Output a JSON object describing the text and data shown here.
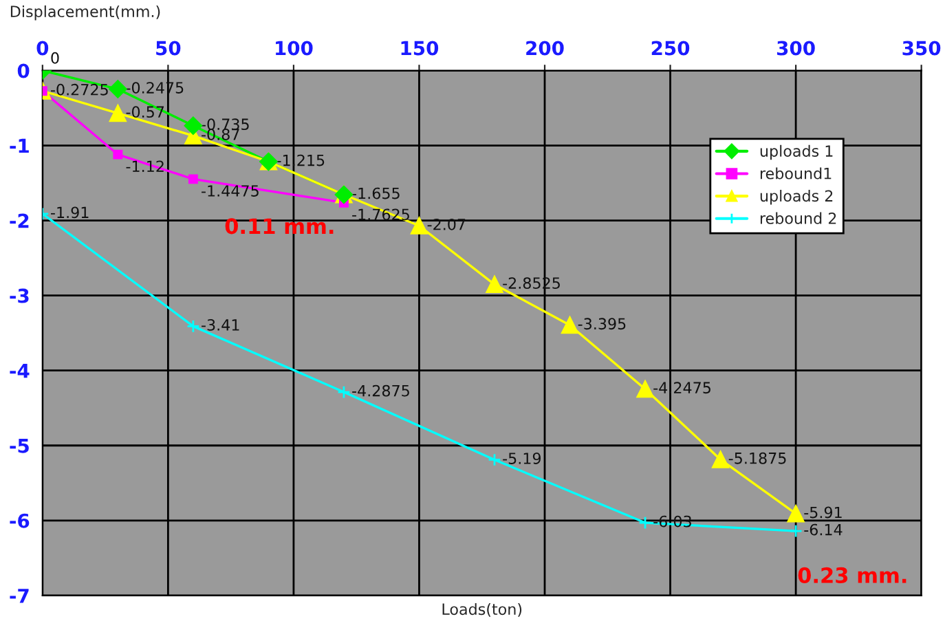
{
  "chart_data": {
    "type": "line",
    "xlabel": "Loads(ton)",
    "ylabel": "Displacement(mm.)",
    "xlim": [
      0,
      350
    ],
    "xticks": [
      0,
      50,
      100,
      150,
      200,
      250,
      300,
      350
    ],
    "ylim": [
      -7,
      0
    ],
    "yticks": [
      -7,
      -6,
      -5,
      -4,
      -3,
      -2,
      -1,
      0
    ],
    "grid": true,
    "legend": "right",
    "series": [
      {
        "name": "uploads 1",
        "color": "#00ee00",
        "marker": "diamond",
        "x": [
          0,
          30,
          60,
          90,
          120
        ],
        "values": [
          0,
          -0.2475,
          -0.735,
          -1.215,
          -1.655
        ],
        "value_labels": [
          "0",
          "-0.2475",
          "-0.735",
          null,
          "-1.655"
        ]
      },
      {
        "name": "rebound1",
        "color": "#ff00ff",
        "marker": "square",
        "x": [
          0,
          30,
          60,
          120
        ],
        "values": [
          -0.2725,
          -1.12,
          -1.4475,
          -1.7625
        ],
        "value_labels": [
          null,
          "-1.12",
          "-1.4475",
          "-1.7625"
        ]
      },
      {
        "name": "uploads 2",
        "color": "#ffff00",
        "marker": "triangle",
        "x": [
          0,
          30,
          60,
          90,
          120,
          150,
          180,
          210,
          240,
          270,
          300
        ],
        "values": [
          -0.2725,
          -0.57,
          -0.87,
          -1.215,
          -1.655,
          -2.07,
          -2.8525,
          -3.395,
          -4.2475,
          -5.1875,
          -5.91
        ],
        "value_labels": [
          "-0.2725",
          "-0.57",
          "-0.87",
          "-1.215",
          null,
          "-2.07",
          "-2.8525",
          "-3.395",
          "-4.2475",
          "-5.1875",
          "-5.91"
        ]
      },
      {
        "name": "rebound 2",
        "color": "#00ffff",
        "marker": "cross",
        "x": [
          0,
          60,
          120,
          180,
          240,
          300
        ],
        "values": [
          -1.91,
          -3.41,
          -4.2875,
          -5.19,
          -6.03,
          -6.14
        ],
        "value_labels": [
          "-1.91",
          "-3.41",
          "-4.2875",
          "-5.19",
          "-6.03",
          "-6.14"
        ]
      }
    ],
    "annotations": [
      "0.11 mm.",
      "0.23 mm."
    ]
  }
}
